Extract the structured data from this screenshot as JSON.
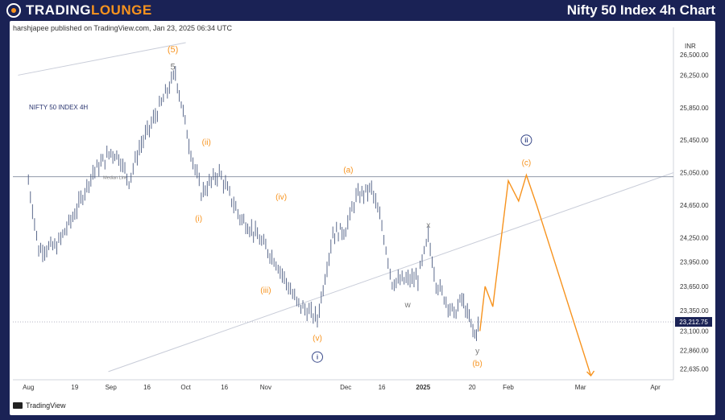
{
  "header": {
    "brand_prefix": "TRADING",
    "brand_suffix": "LOUNGE",
    "title": "Nifty 50 Index 4h Chart"
  },
  "published": "harshjapee published on TradingView.com, Jan 23, 2025 06:34 UTC",
  "footer_logo": "TradingView",
  "colors": {
    "price_bars": "#4a5a80",
    "projection": "#f7931e",
    "wave_minor": "#f7931e",
    "wave_minute_labels": "#777777",
    "wave_circled": "#3a4a8a",
    "channel": "#c8ccd8",
    "horizontal": "#9099aa",
    "price_tag": "#1a2255"
  },
  "chart_data": {
    "type": "line",
    "title": "NIFTY 50 INDEX 4H",
    "currency": "INR",
    "x_ticks": [
      "Aug",
      "19",
      "Sep",
      "16",
      "Oct",
      "16",
      "Nov",
      "Dec",
      "16",
      "2025",
      "20",
      "Feb",
      "Mar",
      "Apr"
    ],
    "x_tick_dates": [
      "2024-08-01",
      "2024-08-19",
      "2024-09-02",
      "2024-09-16",
      "2024-10-01",
      "2024-10-16",
      "2024-11-01",
      "2024-12-02",
      "2024-12-16",
      "2025-01-01",
      "2025-01-20",
      "2025-02-03",
      "2025-03-03",
      "2025-04-01"
    ],
    "y_ticks": [
      26500,
      26250,
      25850,
      25450,
      25050,
      24650,
      24250,
      23950,
      23650,
      23350,
      23100,
      22860,
      22635
    ],
    "y_tick_labels": [
      "26,500.00",
      "26,250.00",
      "25,850.00",
      "25,450.00",
      "25,050.00",
      "24,650.00",
      "24,250.00",
      "23,950.00",
      "23,650.00",
      "23,350.00",
      "23,100.00",
      "22,860.00",
      "22,635.00"
    ],
    "ylim": [
      22500,
      26700
    ],
    "last_price": 23212.75,
    "last_price_label": "23,212.75",
    "horizontal_line": {
      "label": "Median Line",
      "value": 25000
    },
    "series": [
      {
        "name": "price",
        "x": [
          "2024-08-01",
          "2024-08-05",
          "2024-08-12",
          "2024-08-19",
          "2024-08-26",
          "2024-09-02",
          "2024-09-05",
          "2024-09-09",
          "2024-09-13",
          "2024-09-20",
          "2024-09-27",
          "2024-10-03",
          "2024-10-07",
          "2024-10-14",
          "2024-10-22",
          "2024-10-28",
          "2024-11-05",
          "2024-11-13",
          "2024-11-21",
          "2024-11-27",
          "2024-12-02",
          "2024-12-06",
          "2024-12-12",
          "2024-12-16",
          "2024-12-20",
          "2024-12-30",
          "2025-01-03",
          "2025-01-06",
          "2025-01-13",
          "2025-01-16",
          "2025-01-21",
          "2025-01-23"
        ],
        "y": [
          24950,
          24100,
          24150,
          24550,
          25050,
          25300,
          25250,
          24950,
          25350,
          25800,
          26270,
          25300,
          24800,
          25050,
          24500,
          24300,
          23950,
          23450,
          23250,
          24300,
          24350,
          24750,
          24850,
          24400,
          23700,
          23750,
          24250,
          23700,
          23300,
          23500,
          23050,
          23212.75
        ]
      },
      {
        "name": "projection",
        "x": [
          "2025-01-23",
          "2025-01-25",
          "2025-01-28",
          "2025-02-03",
          "2025-02-07",
          "2025-02-10",
          "2025-02-14",
          "2025-03-07"
        ],
        "y": [
          23100,
          23650,
          23400,
          24950,
          24700,
          25020,
          24650,
          22550
        ]
      }
    ],
    "channel_lines": [
      {
        "x": [
          "2024-07-28",
          "2024-10-01"
        ],
        "y": [
          26250,
          26650
        ]
      },
      {
        "x": [
          "2024-09-01",
          "2025-04-08"
        ],
        "y": [
          22600,
          25050
        ]
      }
    ],
    "annotations": [
      {
        "text": "(5)",
        "x": "2024-09-26",
        "y": 26560,
        "style": "minor"
      },
      {
        "text": "5",
        "x": "2024-09-26",
        "y": 26350,
        "style": "minute"
      },
      {
        "text": "(i)",
        "x": "2024-10-06",
        "y": 24480,
        "style": "minor"
      },
      {
        "text": "(ii)",
        "x": "2024-10-09",
        "y": 25420,
        "style": "minor"
      },
      {
        "text": "(iii)",
        "x": "2024-11-01",
        "y": 23600,
        "style": "minor"
      },
      {
        "text": "(iv)",
        "x": "2024-11-07",
        "y": 24750,
        "style": "minor"
      },
      {
        "text": "(v)",
        "x": "2024-11-21",
        "y": 23010,
        "style": "minor"
      },
      {
        "text": "i",
        "x": "2024-11-21",
        "y": 22780,
        "style": "circled"
      },
      {
        "text": "(a)",
        "x": "2024-12-03",
        "y": 25080,
        "style": "minor"
      },
      {
        "text": "w",
        "x": "2024-12-26",
        "y": 23420,
        "style": "minute"
      },
      {
        "text": "x",
        "x": "2025-01-03",
        "y": 24400,
        "style": "minute"
      },
      {
        "text": "y",
        "x": "2025-01-22",
        "y": 22850,
        "style": "minute"
      },
      {
        "text": "(b)",
        "x": "2025-01-22",
        "y": 22700,
        "style": "minor"
      },
      {
        "text": "(c)",
        "x": "2025-02-10",
        "y": 25170,
        "style": "minor"
      },
      {
        "text": "ii",
        "x": "2025-02-10",
        "y": 25450,
        "style": "circled"
      }
    ]
  }
}
